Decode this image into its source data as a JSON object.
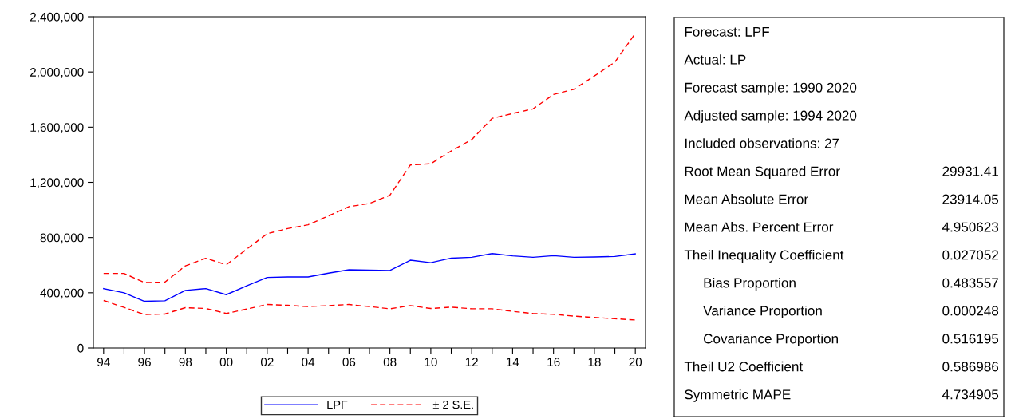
{
  "chart_data": [
    {
      "type": "line",
      "x": [
        1994,
        1995,
        1996,
        1997,
        1998,
        1999,
        2000,
        2001,
        2002,
        2003,
        2004,
        2005,
        2006,
        2007,
        2008,
        2009,
        2010,
        2011,
        2012,
        2013,
        2014,
        2015,
        2016,
        2017,
        2018,
        2019,
        2020
      ],
      "series": [
        {
          "name": "LPF",
          "color": "#0000ff",
          "line_style": "solid",
          "values": [
            430000,
            400000,
            338000,
            342000,
            417000,
            430000,
            386000,
            450000,
            511000,
            515000,
            515000,
            542000,
            567000,
            564000,
            561000,
            636000,
            618000,
            651000,
            657000,
            684000,
            667000,
            657000,
            669000,
            657000,
            659000,
            663000,
            682000
          ]
        },
        {
          "name": "± 2 S.E.",
          "color": "#ff0000",
          "line_style": "dashed",
          "values": [
            540000,
            540000,
            474000,
            477000,
            595000,
            650000,
            603000,
            716000,
            828000,
            865000,
            893000,
            957000,
            1024000,
            1047000,
            1107000,
            1326000,
            1335000,
            1428000,
            1510000,
            1664000,
            1699000,
            1733000,
            1837000,
            1875000,
            1971000,
            2071000,
            2279000
          ]
        },
        {
          "color": "#ff0000",
          "line_style": "dashed",
          "values": [
            344000,
            294000,
            242000,
            246000,
            292000,
            286000,
            250000,
            282000,
            315000,
            309000,
            300000,
            307000,
            315000,
            300000,
            284000,
            307000,
            286000,
            296000,
            284000,
            284000,
            265000,
            250000,
            244000,
            231000,
            221000,
            212000,
            203000
          ]
        }
      ],
      "xlim": [
        1993.5,
        2020.5
      ],
      "xticks": [
        {
          "value": 1994,
          "label": "94"
        },
        {
          "value": 1995,
          "label": null
        },
        {
          "value": 1996,
          "label": "96"
        },
        {
          "value": 1997,
          "label": null
        },
        {
          "value": 1998,
          "label": "98"
        },
        {
          "value": 1999,
          "label": null
        },
        {
          "value": 2000,
          "label": "00"
        },
        {
          "value": 2001,
          "label": null
        },
        {
          "value": 2002,
          "label": "02"
        },
        {
          "value": 2003,
          "label": null
        },
        {
          "value": 2004,
          "label": "04"
        },
        {
          "value": 2005,
          "label": null
        },
        {
          "value": 2006,
          "label": "06"
        },
        {
          "value": 2007,
          "label": null
        },
        {
          "value": 2008,
          "label": "08"
        },
        {
          "value": 2009,
          "label": null
        },
        {
          "value": 2010,
          "label": "10"
        },
        {
          "value": 2011,
          "label": null
        },
        {
          "value": 2012,
          "label": "12"
        },
        {
          "value": 2013,
          "label": null
        },
        {
          "value": 2014,
          "label": "14"
        },
        {
          "value": 2015,
          "label": null
        },
        {
          "value": 2016,
          "label": "16"
        },
        {
          "value": 2017,
          "label": null
        },
        {
          "value": 2018,
          "label": "18"
        },
        {
          "value": 2019,
          "label": null
        },
        {
          "value": 2020,
          "label": "20"
        }
      ],
      "ylim": [
        0,
        2400000
      ],
      "yticks": [
        {
          "value": 0,
          "label": "0"
        },
        {
          "value": 400000,
          "label": "400,000"
        },
        {
          "value": 800000,
          "label": "800,000"
        },
        {
          "value": 1200000,
          "label": "1,200,000"
        },
        {
          "value": 1600000,
          "label": "1,600,000"
        },
        {
          "value": 2000000,
          "label": "2,000,000"
        },
        {
          "value": 2400000,
          "label": "2,400,000"
        }
      ],
      "grid": false,
      "legend": "bottom",
      "marker": "none"
    },
    {
      "type": "other",
      "categories": [
        "Forecast: LPF",
        "Actual: LP",
        "Forecast sample: 1990 2020",
        "Adjusted sample: 1994 2020",
        "Included observations: 27",
        "Root Mean Squared Error",
        "Mean Absolute Error",
        "Mean Abs. Percent Error",
        "Theil Inequality Coefficient",
        "     Bias Proportion",
        "     Variance Proportion",
        "     Covariance Proportion",
        "Theil U2 Coefficient",
        "Symmetric MAPE"
      ],
      "value_labels": [
        null,
        null,
        null,
        null,
        null,
        "29931.41",
        "23914.05",
        "4.950623",
        "0.027052",
        "0.483557",
        "0.000248",
        "0.516195",
        "0.586986",
        "4.734905"
      ]
    }
  ]
}
